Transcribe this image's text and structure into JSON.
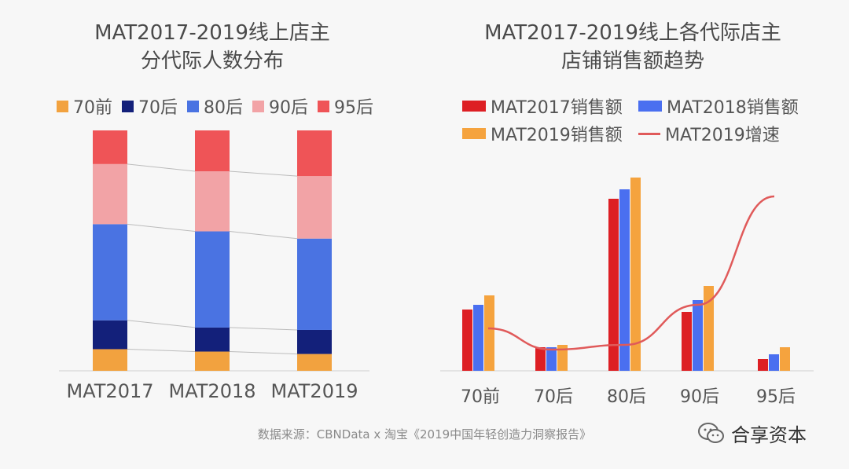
{
  "colors": {
    "pre70": "#f2a23f",
    "post70": "#13207a",
    "post80": "#4a73e2",
    "post90": "#f2a3a6",
    "post95": "#ef5457",
    "mat2017": "#dd1f24",
    "mat2018": "#4a6ff0",
    "mat2019": "#f5a33e",
    "growth": "#e05a5a"
  },
  "chart_data": [
    {
      "type": "bar",
      "stacked": true,
      "title": "MAT2017-2019线上店主",
      "subtitle": "分代际人数分布",
      "categories": [
        "MAT2017",
        "MAT2018",
        "MAT2019"
      ],
      "series": [
        {
          "name": "70前",
          "values": [
            9,
            8,
            7
          ]
        },
        {
          "name": "70后",
          "values": [
            12,
            10,
            10
          ]
        },
        {
          "name": "80后",
          "values": [
            40,
            40,
            38
          ]
        },
        {
          "name": "90后",
          "values": [
            25,
            25,
            26
          ]
        },
        {
          "name": "95后",
          "values": [
            14,
            17,
            19
          ]
        }
      ],
      "ylim": [
        0,
        100
      ],
      "legend": "top"
    },
    {
      "type": "bar",
      "title": "MAT2017-2019线上各代际店主",
      "subtitle": "店铺销售额趋势",
      "categories": [
        "70前",
        "70后",
        "80后",
        "90后",
        "95后"
      ],
      "series": [
        {
          "name": "MAT2017销售额",
          "values": [
            26,
            10,
            73,
            25,
            5
          ]
        },
        {
          "name": "MAT2018销售额",
          "values": [
            28,
            10,
            77,
            30,
            7
          ]
        },
        {
          "name": "MAT2019销售额",
          "values": [
            32,
            11,
            82,
            36,
            10
          ]
        }
      ],
      "line_series": {
        "name": "MAT2019增速",
        "values": [
          18,
          9,
          11,
          28,
          74
        ]
      },
      "ylim": [
        0,
        100
      ],
      "legend": "top"
    }
  ],
  "footer": {
    "source": "数据来源：CBNData x 淘宝《2019中国年轻创造力洞察报告》",
    "brand": "合享资本"
  }
}
